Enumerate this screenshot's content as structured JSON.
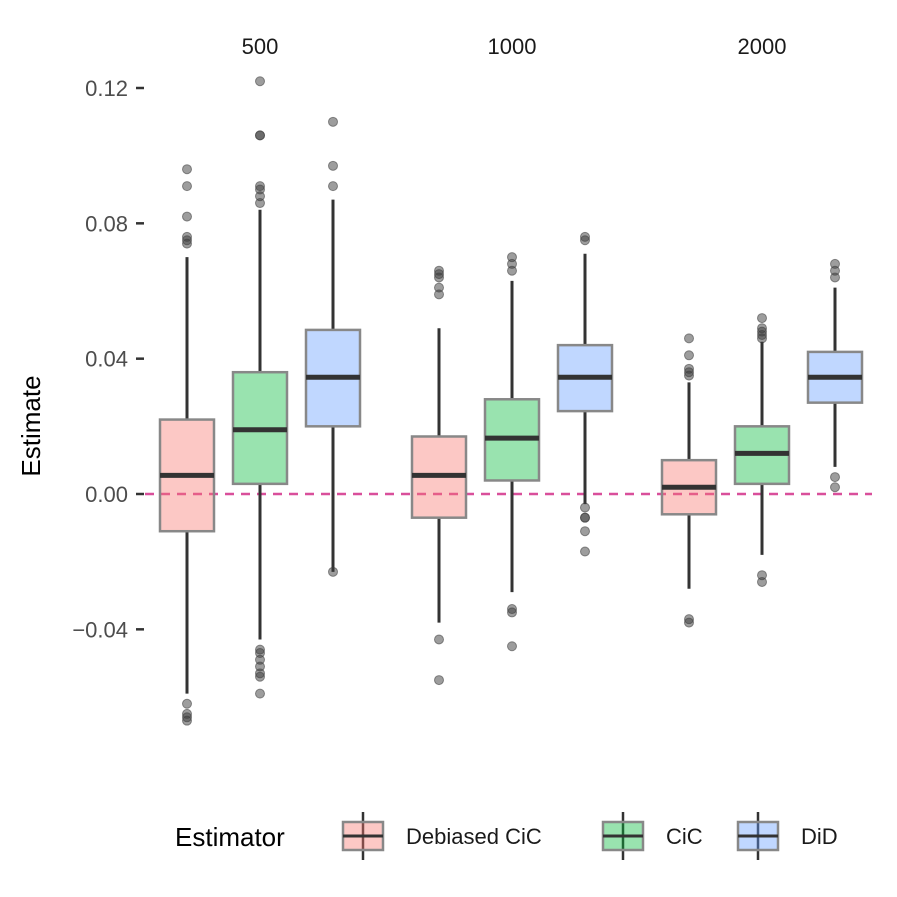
{
  "chart_data": {
    "type": "boxplot",
    "facets": [
      "500",
      "1000",
      "2000"
    ],
    "ylabel": "Estimate",
    "ylim": [
      -0.068,
      0.122
    ],
    "yticks": [
      -0.04,
      0.0,
      0.04,
      0.08,
      0.12
    ],
    "ytick_labels": [
      "−0.04",
      "0.00",
      "0.04",
      "0.08",
      "0.12"
    ],
    "reference_line": {
      "y": 0.0,
      "style": "dashed",
      "color": "#d94f9b"
    },
    "grid": false,
    "legend": {
      "title": "Estimator",
      "position": "bottom",
      "entries": [
        "Debiased CiC",
        "CiC",
        "DiD"
      ]
    },
    "series": [
      {
        "name": "Debiased CiC",
        "color": "#f8766d",
        "boxes": [
          {
            "facet": "500",
            "lower_whisker": -0.059,
            "q1": -0.011,
            "median": 0.0055,
            "q3": 0.022,
            "upper_whisker": 0.07,
            "outliers": [
              0.096,
              0.091,
              0.082,
              0.076,
              0.075,
              0.074,
              -0.062,
              -0.065,
              -0.066,
              -0.067
            ]
          },
          {
            "facet": "1000",
            "lower_whisker": -0.038,
            "q1": -0.007,
            "median": 0.0055,
            "q3": 0.017,
            "upper_whisker": 0.049,
            "outliers": [
              0.066,
              0.065,
              0.064,
              0.061,
              0.059,
              -0.043,
              -0.055
            ]
          },
          {
            "facet": "2000",
            "lower_whisker": -0.028,
            "q1": -0.006,
            "median": 0.002,
            "q3": 0.01,
            "upper_whisker": 0.033,
            "outliers": [
              0.046,
              0.041,
              0.037,
              0.036,
              0.035,
              -0.037,
              -0.038
            ]
          }
        ]
      },
      {
        "name": "CiC",
        "color": "#00ba38",
        "boxes": [
          {
            "facet": "500",
            "lower_whisker": -0.043,
            "q1": 0.003,
            "median": 0.019,
            "q3": 0.036,
            "upper_whisker": 0.084,
            "outliers": [
              0.122,
              0.106,
              0.106,
              0.091,
              0.09,
              0.088,
              0.086,
              -0.046,
              -0.047,
              -0.049,
              -0.051,
              -0.053,
              -0.054,
              -0.059
            ]
          },
          {
            "facet": "1000",
            "lower_whisker": -0.029,
            "q1": 0.004,
            "median": 0.0165,
            "q3": 0.028,
            "upper_whisker": 0.063,
            "outliers": [
              0.07,
              0.068,
              0.066,
              -0.034,
              -0.035,
              -0.045
            ]
          },
          {
            "facet": "2000",
            "lower_whisker": -0.018,
            "q1": 0.003,
            "median": 0.012,
            "q3": 0.02,
            "upper_whisker": 0.045,
            "outliers": [
              0.052,
              0.049,
              0.048,
              0.047,
              0.046,
              -0.024,
              -0.026
            ]
          }
        ]
      },
      {
        "name": "DiD",
        "color": "#619cff",
        "boxes": [
          {
            "facet": "500",
            "lower_whisker": -0.023,
            "q1": 0.02,
            "median": 0.0345,
            "q3": 0.0485,
            "upper_whisker": 0.087,
            "outliers": [
              0.11,
              0.097,
              0.091,
              -0.023
            ]
          },
          {
            "facet": "1000",
            "lower_whisker": -0.003,
            "q1": 0.0245,
            "median": 0.0345,
            "q3": 0.044,
            "upper_whisker": 0.071,
            "outliers": [
              0.076,
              0.075,
              -0.004,
              -0.007,
              -0.007,
              -0.011,
              -0.017
            ]
          },
          {
            "facet": "2000",
            "lower_whisker": 0.008,
            "q1": 0.027,
            "median": 0.0345,
            "q3": 0.042,
            "upper_whisker": 0.061,
            "outliers": [
              0.068,
              0.066,
              0.064,
              0.005,
              0.002
            ]
          }
        ]
      }
    ]
  }
}
